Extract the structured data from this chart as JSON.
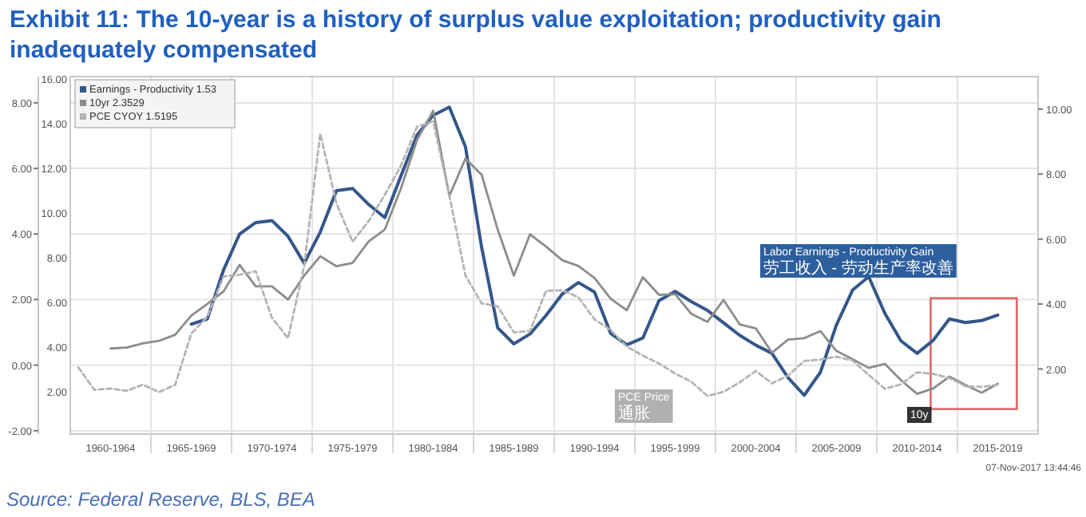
{
  "chart_data": {
    "type": "line",
    "title": "Exhibit 11: The 10-year is a history of surplus value exploitation; productivity gain inadequately compensated",
    "categories": [
      null,
      null,
      "1960-1964",
      null,
      null,
      null,
      null,
      "1965-1969",
      null,
      null,
      null,
      null,
      "1970-1974",
      null,
      null,
      null,
      null,
      "1975-1979",
      null,
      null,
      null,
      null,
      "1980-1984",
      null,
      null,
      null,
      null,
      "1985-1989",
      null,
      null,
      null,
      null,
      "1990-1994",
      null,
      null,
      null,
      null,
      "1995-1999",
      null,
      null,
      null,
      null,
      "2000-2004",
      null,
      null,
      null,
      null,
      "2005-2009",
      null,
      null,
      null,
      null,
      "2010-2014",
      null,
      null,
      null,
      null,
      "2015-2019",
      null,
      null
    ],
    "ylim": [
      -2.1,
      8.8
    ],
    "yticks": [
      {
        "value": -2,
        "label": "-2.00"
      },
      {
        "value": 0,
        "label": "0.00"
      },
      {
        "value": 2,
        "label": "2.00"
      },
      {
        "value": 4,
        "label": "4.00"
      },
      {
        "value": 6,
        "label": "6.00"
      },
      {
        "value": 8,
        "label": "8.00"
      }
    ],
    "y3lim": [
      0.1,
      16.1
    ],
    "y3ticks": [
      {
        "value": 2,
        "label": "2.00"
      },
      {
        "value": 4,
        "label": "4.00"
      },
      {
        "value": 6,
        "label": "6.00"
      },
      {
        "value": 8,
        "label": "8.00"
      },
      {
        "value": 10,
        "label": "10.00"
      },
      {
        "value": 12,
        "label": "12.00"
      },
      {
        "value": 14,
        "label": "14.00"
      },
      {
        "value": 16,
        "label": "16.00"
      }
    ],
    "y2lim": [
      0,
      11
    ],
    "y2ticks": [
      {
        "value": 2,
        "label": "2.00"
      },
      {
        "value": 4,
        "label": "4.00"
      },
      {
        "value": 6,
        "label": "6.00"
      },
      {
        "value": 8,
        "label": "8.00"
      },
      {
        "value": 10,
        "label": "10.00"
      }
    ],
    "grid": true,
    "legend": "top left",
    "series": [
      {
        "name": "Earnings - Productivity 1.53",
        "color": "#34578a",
        "axis": "y",
        "line_style": "solid",
        "values": [
          null,
          null,
          null,
          null,
          null,
          null,
          null,
          1.25,
          1.41,
          2.9,
          4.0,
          4.35,
          4.41,
          3.93,
          3.11,
          4.06,
          5.32,
          5.39,
          4.9,
          4.5,
          5.77,
          7.02,
          7.62,
          7.87,
          6.66,
          3.6,
          1.14,
          0.65,
          0.95,
          1.52,
          2.17,
          2.52,
          2.23,
          0.97,
          0.62,
          0.83,
          1.97,
          2.25,
          1.94,
          1.67,
          1.29,
          0.91,
          0.61,
          0.36,
          -0.38,
          -0.92,
          -0.22,
          1.23,
          2.29,
          2.7,
          1.58,
          0.74,
          0.36,
          0.76,
          1.41,
          1.3,
          1.36,
          1.53,
          null,
          null
        ]
      },
      {
        "name": "10yr 2.3529",
        "color": "#8c8c8c",
        "axis": "y3",
        "line_style": "solid",
        "values": [
          null,
          null,
          3.93,
          3.97,
          4.16,
          4.27,
          4.54,
          5.4,
          5.93,
          6.48,
          7.67,
          6.71,
          6.71,
          6.12,
          7.19,
          8.06,
          7.61,
          7.76,
          8.72,
          9.26,
          11.09,
          13.27,
          14.57,
          10.76,
          12.43,
          11.71,
          9.25,
          7.19,
          9.04,
          8.49,
          7.88,
          7.62,
          7.09,
          6.16,
          5.64,
          7.12,
          6.33,
          6.36,
          5.48,
          5.12,
          6.1,
          5.01,
          4.83,
          3.74,
          4.33,
          4.39,
          4.71,
          3.82,
          3.45,
          3.06,
          3.24,
          2.51,
          1.9,
          2.14,
          2.67,
          2.3,
          1.95,
          2.35,
          null,
          null
        ]
      },
      {
        "name": "PCE CYOY 1.5195",
        "color": "#b4b4b4",
        "axis": "y2",
        "line_style": "dashed",
        "values": [
          2.05,
          1.36,
          1.4,
          1.33,
          1.52,
          1.29,
          1.51,
          3.09,
          3.61,
          4.85,
          4.9,
          5.01,
          3.58,
          2.95,
          5.17,
          9.24,
          7.1,
          5.92,
          6.55,
          7.36,
          8.26,
          9.46,
          9.62,
          7.34,
          4.88,
          4.02,
          3.93,
          3.13,
          3.17,
          4.41,
          4.42,
          4.21,
          3.53,
          3.2,
          2.69,
          2.41,
          2.17,
          1.86,
          1.61,
          1.17,
          1.3,
          1.59,
          1.94,
          1.56,
          1.8,
          2.25,
          2.29,
          2.38,
          2.26,
          1.82,
          1.39,
          1.53,
          1.9,
          1.85,
          1.72,
          1.47,
          1.45,
          1.52,
          null,
          null
        ]
      }
    ],
    "annotations": [
      "Labor Earnings - Productivity Gain",
      "劳工收入 - 劳动生产率改善",
      "PCE Price",
      "通胀",
      "10y",
      "07-Nov-2017 13:44:46",
      "Source: Federal Reserve, BLS, BEA"
    ]
  }
}
